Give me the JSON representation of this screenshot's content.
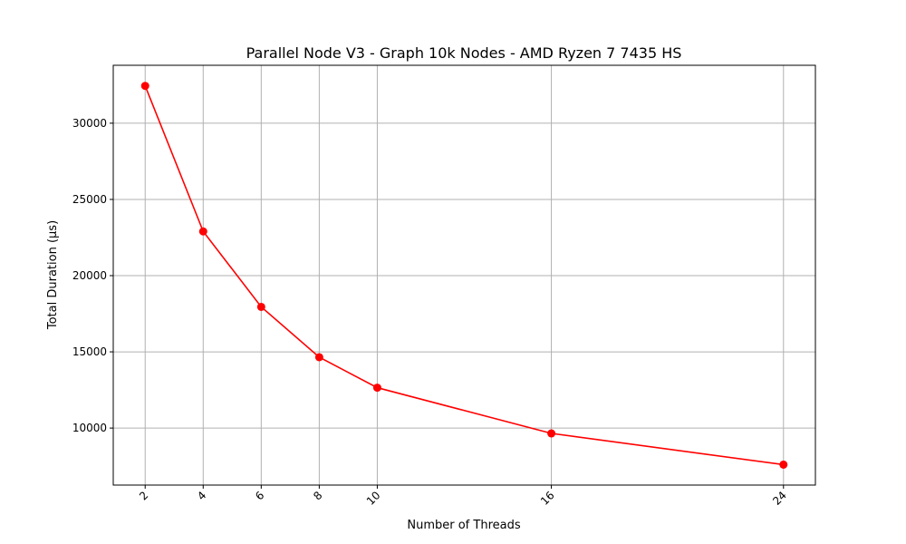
{
  "chart_data": {
    "type": "line",
    "title": "Parallel Node V3 - Graph 10k Nodes - AMD Ryzen 7 7435 HS",
    "xlabel": "Number of Threads",
    "ylabel": "Total Duration (µs)",
    "x": [
      2,
      4,
      6,
      8,
      10,
      16,
      24
    ],
    "y": [
      32450,
      22900,
      17950,
      14650,
      12650,
      9650,
      7600
    ],
    "x_ticks": [
      2,
      4,
      6,
      8,
      10,
      16,
      24
    ],
    "y_ticks": [
      10000,
      15000,
      20000,
      25000,
      30000
    ],
    "xlim": [
      0.9,
      25.1
    ],
    "ylim": [
      6260,
      33800
    ],
    "grid": true,
    "line_color": "#ff0000",
    "marker": "circle"
  }
}
